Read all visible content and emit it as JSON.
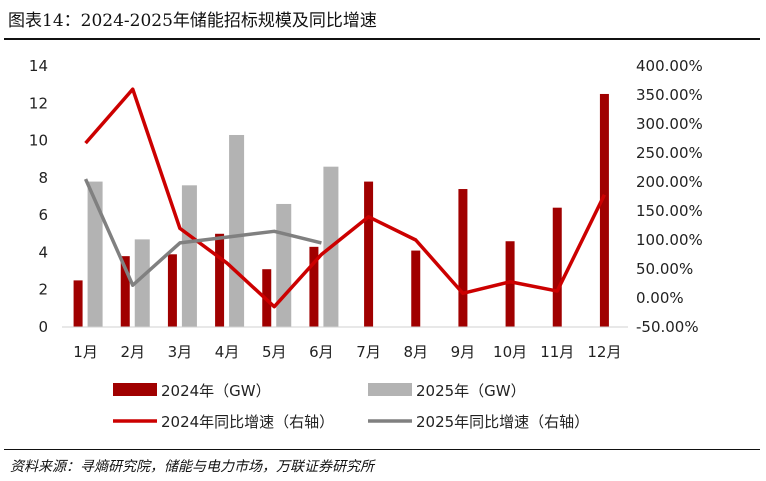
{
  "title": "图表14：2024-2025年储能招标规模及同比增速",
  "source": "资料来源：寻熵研究院，储能与电力市场，万联证券研究所",
  "chart_data": {
    "type": "bar",
    "categories": [
      "1月",
      "2月",
      "3月",
      "4月",
      "5月",
      "6月",
      "7月",
      "8月",
      "9月",
      "10月",
      "11月",
      "12月"
    ],
    "series": [
      {
        "name": "2024年（GW）",
        "kind": "bar",
        "axis": "left",
        "color": "#a00000",
        "values": [
          2.5,
          3.8,
          3.9,
          5.0,
          3.1,
          4.3,
          7.8,
          4.1,
          7.4,
          4.6,
          6.4,
          12.5
        ]
      },
      {
        "name": "2025年（GW）",
        "kind": "bar",
        "axis": "left",
        "color": "#b3b3b3",
        "values": [
          7.8,
          4.7,
          7.6,
          10.3,
          6.6,
          8.6,
          null,
          null,
          null,
          null,
          null,
          null
        ]
      },
      {
        "name": "2024年同比增速（右轴）",
        "kind": "line",
        "axis": "right",
        "color": "#cc0000",
        "values": [
          2.67,
          3.6,
          1.2,
          0.6,
          -0.15,
          0.75,
          1.4,
          1.0,
          0.08,
          0.28,
          0.12,
          1.78
        ]
      },
      {
        "name": "2025年同比增速（右轴）",
        "kind": "line",
        "axis": "right",
        "color": "#808080",
        "values": [
          2.05,
          0.22,
          0.95,
          1.05,
          1.15,
          0.95,
          null,
          null,
          null,
          null,
          null,
          null
        ]
      }
    ],
    "y_left": {
      "min": 0,
      "max": 14,
      "ticks": [
        0,
        2,
        4,
        6,
        8,
        10,
        12,
        14
      ]
    },
    "y_right": {
      "min": -0.5,
      "max": 4.0,
      "ticks": [
        -0.5,
        0,
        0.5,
        1.0,
        1.5,
        2.0,
        2.5,
        3.0,
        3.5,
        4.0
      ],
      "tick_labels": [
        "-50.00%",
        "0.00%",
        "50.00%",
        "100.00%",
        "150.00%",
        "200.00%",
        "250.00%",
        "300.00%",
        "350.00%",
        "400.00%"
      ]
    },
    "legend": [
      "2024年（GW）",
      "2025年（GW）",
      "2024年同比增速（右轴）",
      "2025年同比增速（右轴）"
    ],
    "legend_position": "bottom"
  }
}
